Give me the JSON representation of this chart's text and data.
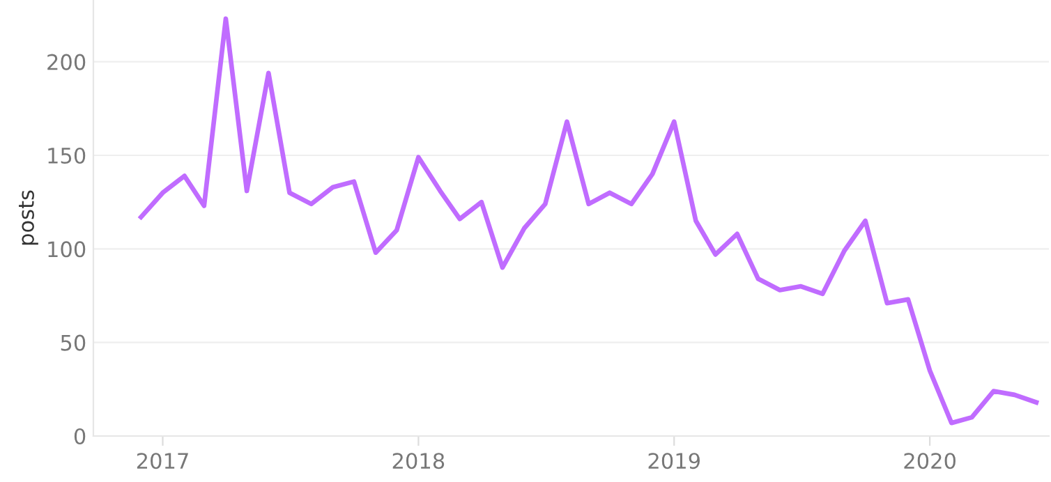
{
  "chart_data": {
    "type": "line",
    "ylabel": "posts",
    "x": [
      "2016-12",
      "2017-01",
      "2017-02",
      "2017-03",
      "2017-04",
      "2017-05",
      "2017-06",
      "2017-07",
      "2017-08",
      "2017-09",
      "2017-10",
      "2017-11",
      "2017-12",
      "2018-01",
      "2018-02",
      "2018-03",
      "2018-04",
      "2018-05",
      "2018-06",
      "2018-07",
      "2018-08",
      "2018-09",
      "2018-10",
      "2018-11",
      "2018-12",
      "2019-01",
      "2019-02",
      "2019-03",
      "2019-04",
      "2019-05",
      "2019-06",
      "2019-07",
      "2019-08",
      "2019-09",
      "2019-10",
      "2019-11",
      "2019-12",
      "2020-01",
      "2020-02",
      "2020-03",
      "2020-04",
      "2020-05",
      "2020-06"
    ],
    "series": [
      {
        "color": "#c06cff",
        "values": [
          117,
          130,
          139,
          123,
          223,
          131,
          194,
          130,
          124,
          133,
          136,
          98,
          110,
          149,
          131,
          116,
          125,
          90,
          111,
          124,
          168,
          124,
          130,
          124,
          140,
          168,
          115,
          97,
          108,
          84,
          78,
          80,
          76,
          99,
          115,
          71,
          73,
          35,
          7,
          10,
          24,
          22,
          18
        ]
      }
    ],
    "xlim": [
      "2016-09-24",
      "2020-06-19"
    ],
    "xticks": [
      {
        "value": "2017-01-01",
        "label": "2017"
      },
      {
        "value": "2018-01-01",
        "label": "2018"
      },
      {
        "value": "2019-01-01",
        "label": "2019"
      },
      {
        "value": "2020-01-01",
        "label": "2020"
      }
    ],
    "ylim": [
      0,
      233
    ],
    "yticks": [
      0,
      50,
      100,
      150,
      200
    ],
    "grid": "y",
    "marker": "none",
    "line_style": "solid"
  }
}
